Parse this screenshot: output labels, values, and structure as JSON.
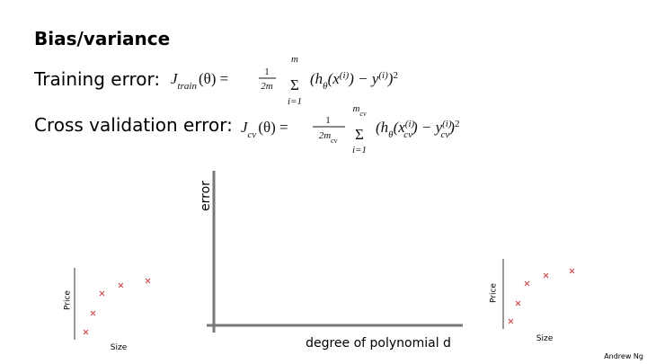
{
  "header": {
    "title": "Bias/variance"
  },
  "training": {
    "label": "Training error:",
    "formula": {
      "lhs": "J",
      "lhs_sub": "train",
      "lhs_rest": "(θ) =",
      "num": "1",
      "den": "2m",
      "sum": "Σ",
      "sum_top": "m",
      "sum_bottom": "i=1",
      "b1": "(h",
      "b1_sub": "θ",
      "b2": "(x",
      "b2_sup": "(i)",
      "b3": ") − y",
      "b3_sup": "(i)",
      "b4": ")",
      "power": "2"
    }
  },
  "cross_validation": {
    "label": "Cross validation error:",
    "formula": {
      "lhs": "J",
      "lhs_sub": "cv",
      "lhs_rest": "(θ) =",
      "num": "1",
      "den": "2m",
      "den_sub": "cv",
      "sum": "Σ",
      "sum_top": "m",
      "sum_top_sub": "cv",
      "sum_bottom": "i=1",
      "b1": "(h",
      "b1_sub": "θ",
      "b2": "(x",
      "b2_sup": "(i)",
      "b2_sub": "cv",
      "b3": ") − y",
      "b3_sup": "(i)",
      "b3_sub": "cv",
      "b4": ")",
      "power": "2"
    }
  },
  "main_plot": {
    "y_label": "error",
    "x_label": "degree of polynomial d"
  },
  "left_plot": {
    "y_label": "Price",
    "x_label": "Size"
  },
  "right_plot": {
    "y_label": "Price",
    "x_label": "Size"
  },
  "footer": {
    "author": "Andrew Ng"
  }
}
